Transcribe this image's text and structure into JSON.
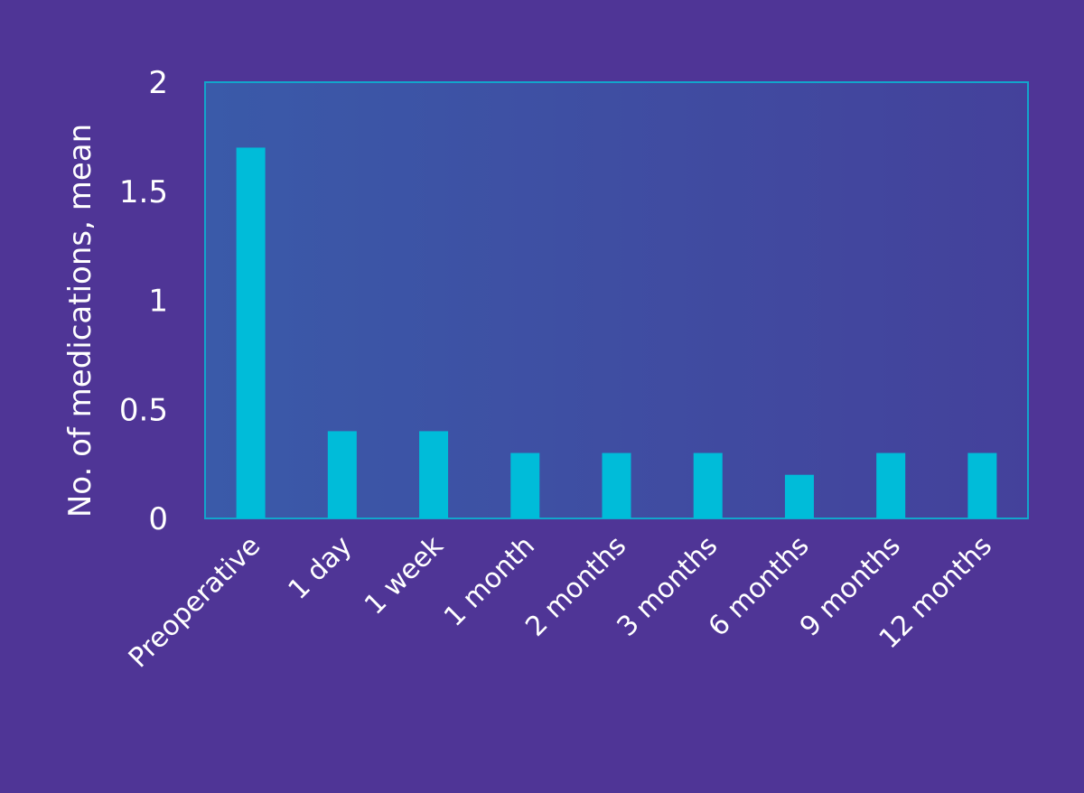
{
  "chart_data": {
    "type": "bar",
    "title": "",
    "xlabel": "",
    "ylabel": "No. of medications, mean",
    "ylim": [
      0,
      2
    ],
    "yticks": [
      "0",
      "0.5",
      "1",
      "1.5",
      "2"
    ],
    "ytick_values": [
      0,
      0.5,
      1,
      1.5,
      2
    ],
    "grid": false,
    "categories": [
      "Preoperative",
      "1 day",
      "1 week",
      "1 month",
      "2 months",
      "3 months",
      "6 months",
      "9 months",
      "12 months"
    ],
    "values": [
      1.7,
      0.4,
      0.4,
      0.3,
      0.3,
      0.3,
      0.2,
      0.3,
      0.3
    ]
  },
  "colors": {
    "background": "#4f3596",
    "plot_gradient_start": "#3a5aa9",
    "plot_gradient_end": "#44419b",
    "plot_border": "#12a6cc",
    "bar": "#00bcd9"
  }
}
